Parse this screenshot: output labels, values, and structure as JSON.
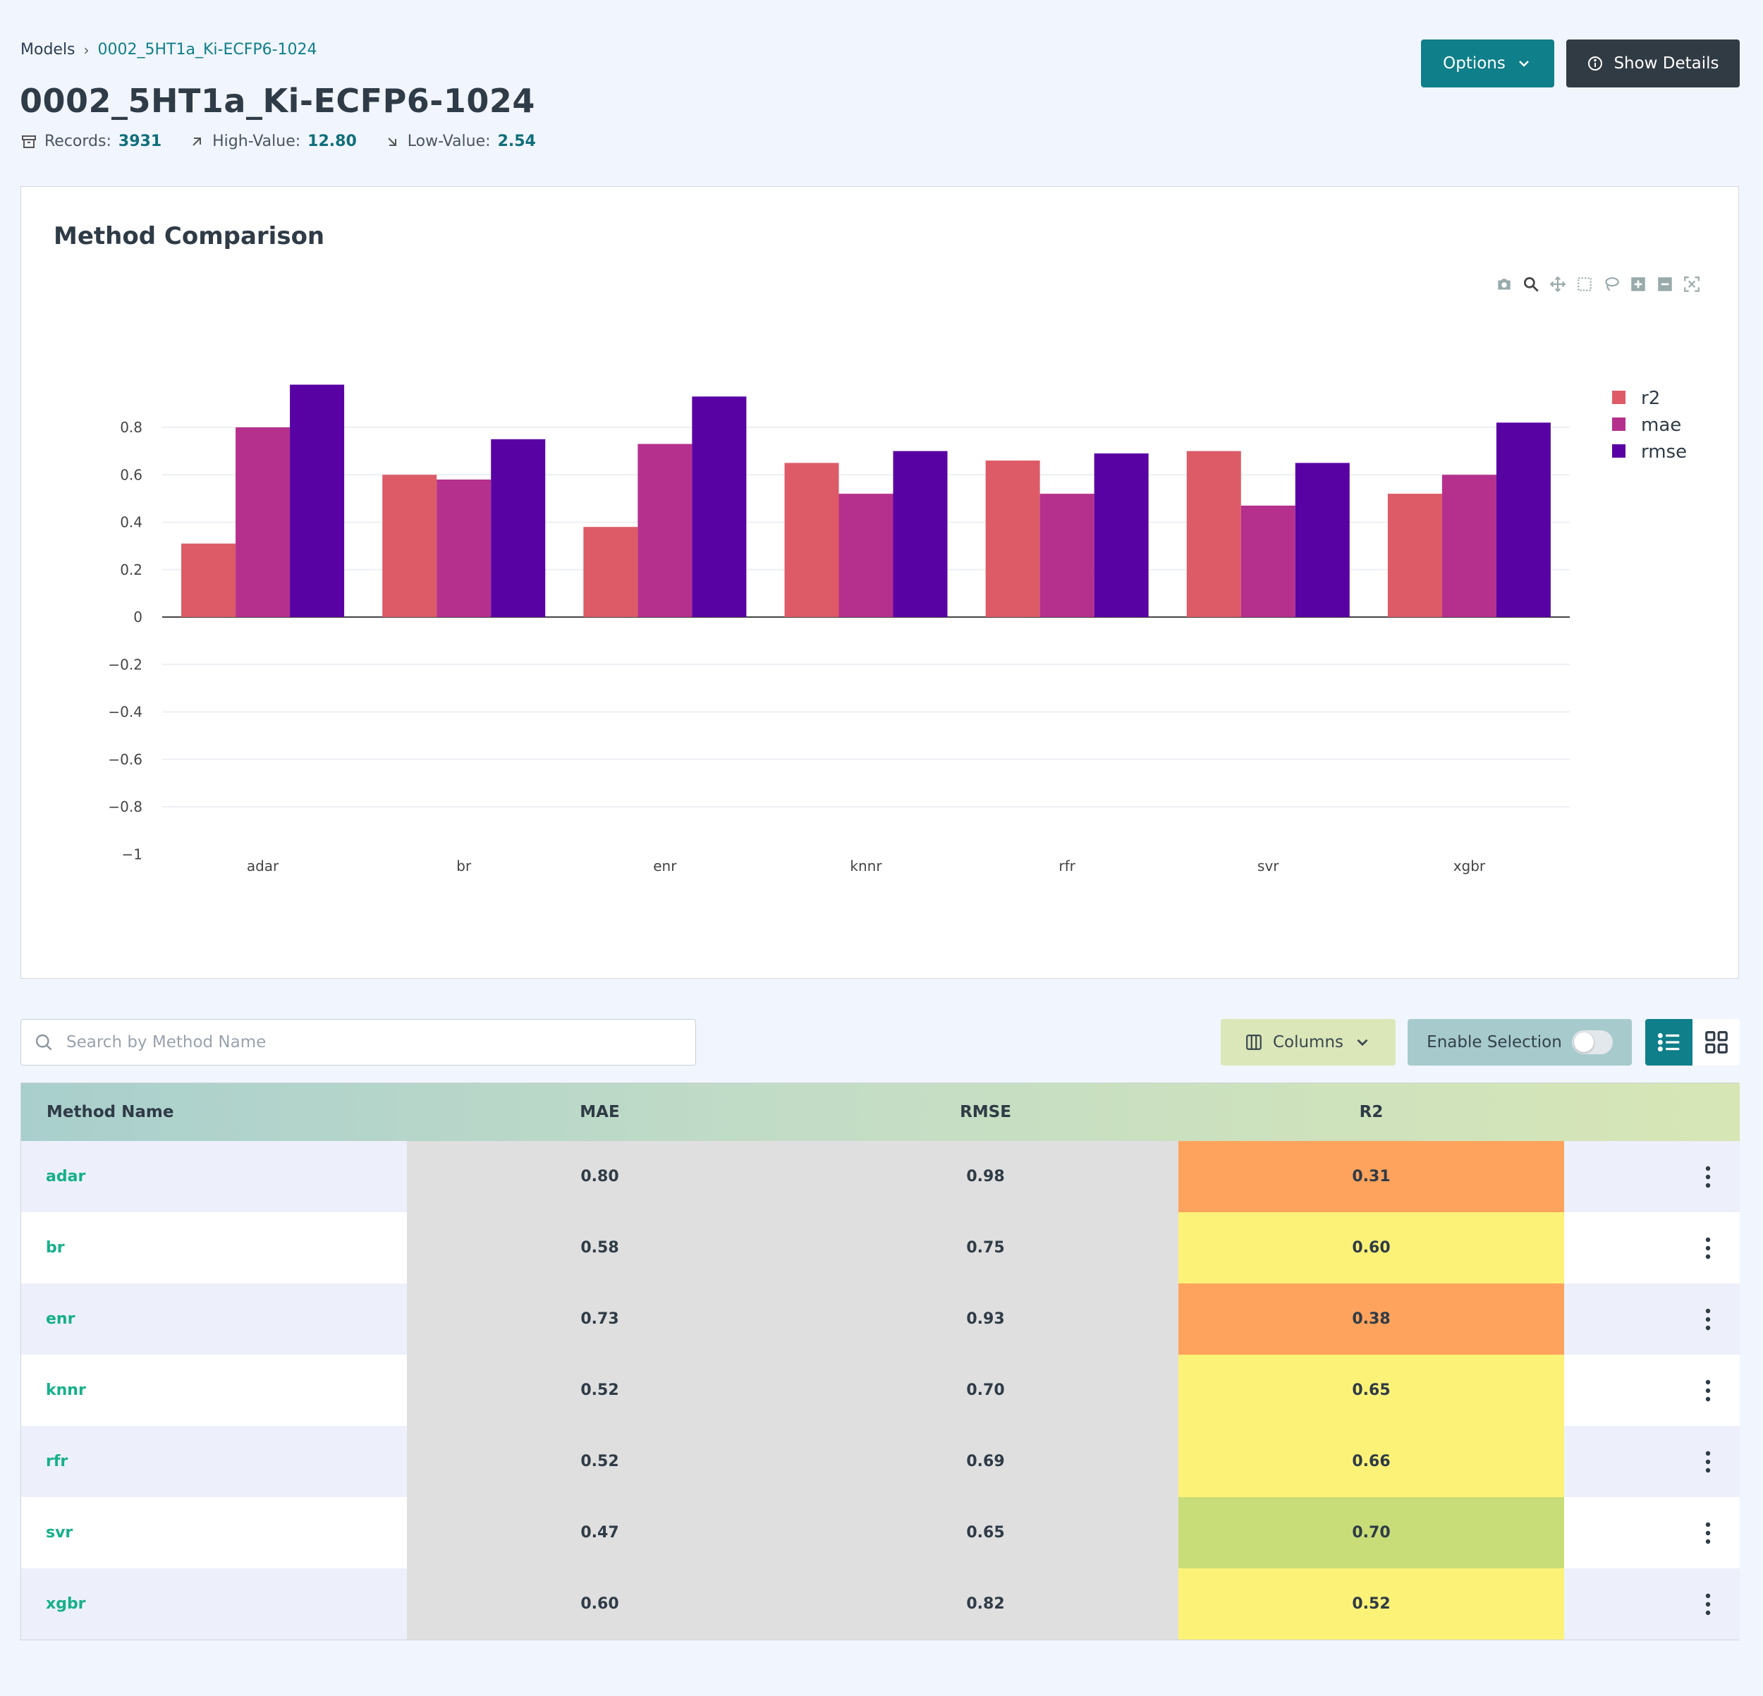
{
  "breadcrumb": {
    "root": "Models",
    "current": "0002_5HT1a_Ki-ECFP6-1024"
  },
  "title": "0002_5HT1a_Ki-ECFP6-1024",
  "stats": {
    "records_label": "Records:",
    "records_value": "3931",
    "high_label": "High-Value:",
    "high_value": "12.80",
    "low_label": "Low-Value:",
    "low_value": "2.54"
  },
  "buttons": {
    "options": "Options",
    "show_details": "Show Details"
  },
  "chart": {
    "title": "Method Comparison"
  },
  "chart_data": {
    "type": "bar",
    "title": "Method Comparison",
    "categories": [
      "adar",
      "br",
      "enr",
      "knnr",
      "rfr",
      "svr",
      "xgbr"
    ],
    "series": [
      {
        "name": "r2",
        "color": "#dc5b67",
        "values": [
          0.31,
          0.6,
          0.38,
          0.65,
          0.66,
          0.7,
          0.52
        ]
      },
      {
        "name": "mae",
        "color": "#b5308d",
        "values": [
          0.8,
          0.58,
          0.73,
          0.52,
          0.52,
          0.47,
          0.6
        ]
      },
      {
        "name": "rmse",
        "color": "#5802a4",
        "values": [
          0.98,
          0.75,
          0.93,
          0.7,
          0.69,
          0.65,
          0.82
        ]
      }
    ],
    "ylim": [
      -1,
      1
    ],
    "yticks": [
      0.8,
      0.6,
      0.4,
      0.2,
      0,
      -0.2,
      -0.4,
      -0.6,
      -0.8,
      -1
    ],
    "ytick_labels": [
      "0.8",
      "0.6",
      "0.4",
      "0.2",
      "0",
      "−0.2",
      "−0.4",
      "−0.6",
      "−0.8",
      "−1"
    ],
    "xlabel": "",
    "ylabel": "",
    "legend": "top-right",
    "grid": true
  },
  "toolbar": {
    "search_placeholder": "Search by Method Name",
    "columns": "Columns",
    "enable_selection": "Enable Selection"
  },
  "table": {
    "headers": {
      "name": "Method Name",
      "mae": "MAE",
      "rmse": "RMSE",
      "r2": "R2"
    },
    "rows": [
      {
        "name": "adar",
        "mae": "0.80",
        "rmse": "0.98",
        "r2": "0.31",
        "r2_color": "#fda35d"
      },
      {
        "name": "br",
        "mae": "0.58",
        "rmse": "0.75",
        "r2": "0.60",
        "r2_color": "#fdf278"
      },
      {
        "name": "enr",
        "mae": "0.73",
        "rmse": "0.93",
        "r2": "0.38",
        "r2_color": "#fda35d"
      },
      {
        "name": "knnr",
        "mae": "0.52",
        "rmse": "0.70",
        "r2": "0.65",
        "r2_color": "#fdf278"
      },
      {
        "name": "rfr",
        "mae": "0.52",
        "rmse": "0.69",
        "r2": "0.66",
        "r2_color": "#fdf278"
      },
      {
        "name": "svr",
        "mae": "0.47",
        "rmse": "0.65",
        "r2": "0.70",
        "r2_color": "#c8dd78"
      },
      {
        "name": "xgbr",
        "mae": "0.60",
        "rmse": "0.82",
        "r2": "0.52",
        "r2_color": "#fdf278"
      }
    ]
  },
  "colors": {
    "accent": "#0f7f8a",
    "dark_button": "#313b44",
    "link": "#17b08a"
  }
}
